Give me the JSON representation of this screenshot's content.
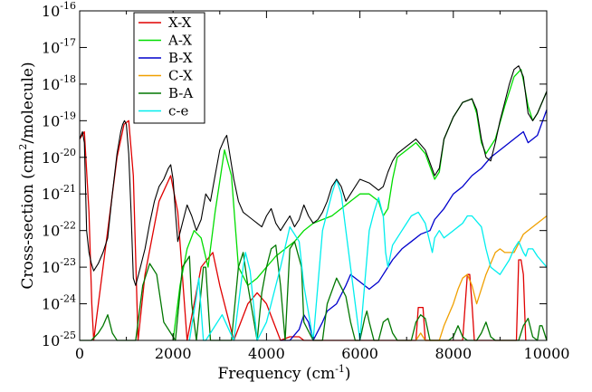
{
  "chart_data": {
    "type": "line",
    "title": "",
    "xlabel": "Frequency (cm",
    "xlabel_sup": "-1",
    "xlabel_end": ")",
    "ylabel": "Cross-section (cm",
    "ylabel_sup": "2",
    "ylabel_end": "/molecule)",
    "xlim": [
      0,
      10000
    ],
    "y_log_scale": true,
    "ylim_exponent": [
      -25,
      -16
    ],
    "x_ticks": [
      0,
      2000,
      4000,
      6000,
      8000,
      10000
    ],
    "x_tick_labels": [
      "0",
      "2000",
      "4000",
      "6000",
      "8000",
      "10000"
    ],
    "y_tick_exponents": [
      -25,
      -24,
      -23,
      -22,
      -21,
      -20,
      -19,
      -18,
      -17,
      -16
    ],
    "y_tick_base": "10",
    "y_tick_labels": [
      "-25",
      "-24",
      "-23",
      "-22",
      "-21",
      "-20",
      "-19",
      "-18",
      "-17",
      "-16"
    ],
    "legend_position": "top-left",
    "series": [
      {
        "name": "X-X",
        "color": "#e00000",
        "x": [
          0,
          100,
          200,
          260,
          300,
          600,
          800,
          950,
          1050,
          1150,
          1250,
          1400,
          1700,
          1950,
          2100,
          2300,
          2600,
          2850,
          3000,
          3300,
          3600,
          3800,
          4000,
          4300,
          4500,
          4700,
          4800,
          5000,
          7200,
          7250,
          7300,
          7350,
          7400,
          8200,
          8300,
          8350,
          8400,
          8450,
          9350,
          9400,
          9450,
          9500,
          9550
        ],
        "y": [
          -19.5,
          -19.3,
          -21.5,
          -24,
          -25,
          -22,
          -20,
          -19.1,
          -19.0,
          -20.5,
          -25,
          -23.2,
          -21.2,
          -20.5,
          -21.5,
          -25,
          -23,
          -22.6,
          -23.5,
          -25,
          -24,
          -23.7,
          -24.0,
          -25,
          -24.9,
          -24.9,
          -25,
          -25,
          -25,
          -24.1,
          -24.1,
          -24.1,
          -25,
          -25,
          -23.2,
          -23.2,
          -24.0,
          -25,
          -25,
          -22.8,
          -22.8,
          -23.2,
          -25
        ]
      },
      {
        "name": "A-X",
        "color": "#00dd00",
        "x": [
          2000,
          2150,
          2300,
          2450,
          2600,
          2750,
          2900,
          3100,
          3250,
          3400,
          3600,
          3800,
          4000,
          4200,
          4400,
          4600,
          4800,
          5000,
          5200,
          5400,
          5600,
          5800,
          6000,
          6200,
          6400,
          6500,
          6600,
          6700,
          6800,
          7000,
          7200,
          7400,
          7600,
          7700,
          7800,
          8000,
          8200,
          8400,
          8500,
          8600,
          8700,
          8900,
          9100,
          9300,
          9450,
          9500,
          9600,
          9700,
          9800,
          10000
        ],
        "y": [
          -25,
          -23.5,
          -22.5,
          -22.0,
          -22.2,
          -23.0,
          -21.5,
          -19.8,
          -20.5,
          -23.0,
          -23.5,
          -23.3,
          -23.0,
          -22.7,
          -22.5,
          -22.3,
          -22.0,
          -21.8,
          -21.7,
          -21.6,
          -21.4,
          -21.2,
          -21.0,
          -21.0,
          -21.2,
          -21.6,
          -21.4,
          -20.6,
          -20.0,
          -19.8,
          -19.6,
          -19.9,
          -20.6,
          -20.4,
          -19.5,
          -18.9,
          -18.5,
          -18.4,
          -18.8,
          -19.6,
          -19.9,
          -19.5,
          -18.6,
          -17.8,
          -17.6,
          -17.9,
          -18.6,
          -19.0,
          -18.8,
          -18.2
        ]
      },
      {
        "name": "B-X",
        "color": "#0000cc",
        "x": [
          4300,
          4500,
          4700,
          4800,
          4900,
          5000,
          5200,
          5300,
          5500,
          5700,
          5800,
          6000,
          6200,
          6400,
          6500,
          6700,
          6900,
          7100,
          7300,
          7500,
          7600,
          7800,
          8000,
          8200,
          8400,
          8600,
          8800,
          9000,
          9200,
          9400,
          9500,
          9600,
          9800,
          10000
        ],
        "y": [
          -25,
          -25,
          -24.7,
          -24.3,
          -24.5,
          -25,
          -24.5,
          -24.2,
          -24.0,
          -23.5,
          -23.2,
          -23.4,
          -23.6,
          -23.4,
          -23.2,
          -22.8,
          -22.5,
          -22.3,
          -22.1,
          -22.0,
          -21.7,
          -21.4,
          -21.0,
          -20.8,
          -20.5,
          -20.3,
          -20.0,
          -19.8,
          -19.6,
          -19.4,
          -19.3,
          -19.6,
          -19.4,
          -18.7
        ]
      },
      {
        "name": "C-X",
        "color": "#f0a000",
        "x": [
          7200,
          7300,
          7400,
          7500,
          7700,
          7800,
          8000,
          8100,
          8200,
          8300,
          8400,
          8500,
          8700,
          8900,
          9000,
          9100,
          9300,
          9500,
          9700,
          10000
        ],
        "y": [
          -25,
          -24.8,
          -25,
          -25,
          -25,
          -24.6,
          -24.0,
          -23.6,
          -23.3,
          -23.2,
          -23.5,
          -24.0,
          -23.2,
          -22.6,
          -22.5,
          -22.6,
          -22.6,
          -22.1,
          -21.9,
          -21.6
        ]
      },
      {
        "name": "B-A",
        "color": "#007700",
        "x": [
          0,
          250,
          400,
          500,
          600,
          700,
          800,
          1200,
          1350,
          1500,
          1650,
          1800,
          2050,
          2200,
          2350,
          2400,
          2500,
          2650,
          2700,
          2800,
          2900,
          3250,
          3400,
          3500,
          3600,
          3800,
          3900,
          4000,
          4100,
          4200,
          4300,
          4400,
          4500,
          4600,
          4750,
          4800,
          5000,
          5200,
          5300,
          5500,
          5700,
          5800,
          5900,
          6000,
          6100,
          6150,
          6200,
          6300,
          6350,
          6400,
          6500,
          6600,
          6700,
          6800,
          6900,
          7000,
          7100,
          7200,
          7300,
          7400,
          7500,
          7600,
          7900,
          8000,
          8100,
          8200,
          8300,
          8400,
          8500,
          8600,
          8700,
          8800,
          8900,
          9000,
          9300,
          9400,
          9500,
          9600,
          9700,
          9800,
          9850,
          9900,
          10000
        ],
        "y": [
          -25,
          -25,
          -24.8,
          -24.6,
          -24.3,
          -24.8,
          -25,
          -25,
          -23.5,
          -22.9,
          -23.2,
          -24.5,
          -25,
          -23.0,
          -22.7,
          -24.0,
          -25,
          -23.0,
          -23.0,
          -25,
          -25,
          -25,
          -23.0,
          -22.6,
          -23.5,
          -25,
          -23.7,
          -23.0,
          -22.5,
          -22.4,
          -23.5,
          -25,
          -22.5,
          -22.3,
          -23.0,
          -24.5,
          -25,
          -25,
          -24.0,
          -23.3,
          -23.8,
          -24.5,
          -25,
          -25,
          -24.4,
          -24.2,
          -24.5,
          -25,
          -25,
          -25,
          -24.5,
          -24.4,
          -24.8,
          -25,
          -25,
          -25,
          -25,
          -24.5,
          -24.3,
          -24.4,
          -25,
          -25,
          -25,
          -24.9,
          -24.6,
          -24.9,
          -25,
          -25,
          -25,
          -24.8,
          -24.5,
          -24.9,
          -25,
          -25,
          -25,
          -25,
          -24.6,
          -24.4,
          -24.9,
          -25,
          -24.6,
          -24.6,
          -25
        ]
      },
      {
        "name": "c-e",
        "color": "#00eeee",
        "x": [
          2350,
          2500,
          2550,
          2650,
          2700,
          2800,
          3050,
          3300,
          3500,
          3550,
          3650,
          3800,
          4000,
          4300,
          4500,
          4700,
          4800,
          5000,
          5200,
          5400,
          5500,
          5600,
          5700,
          6000,
          6200,
          6300,
          6400,
          6500,
          6550,
          6600,
          6700,
          6900,
          7100,
          7250,
          7400,
          7550,
          7600,
          7700,
          7800,
          8000,
          8200,
          8300,
          8400,
          8600,
          8700,
          8800,
          9000,
          9200,
          9300,
          9400,
          9500,
          9550,
          9600,
          9700,
          9800,
          10000
        ],
        "y": [
          -25,
          -23.8,
          -23.3,
          -25,
          -25,
          -24.8,
          -24.3,
          -25,
          -23.0,
          -22.6,
          -23.1,
          -25,
          -24.5,
          -23.0,
          -21.9,
          -22.3,
          -23.5,
          -25,
          -22.0,
          -21.0,
          -20.6,
          -21.0,
          -22.0,
          -25,
          -22.0,
          -21.5,
          -21.1,
          -21.6,
          -22.6,
          -23.0,
          -22.4,
          -22.0,
          -21.6,
          -21.5,
          -21.8,
          -22.6,
          -22.2,
          -22.0,
          -22.2,
          -22.0,
          -21.8,
          -21.6,
          -21.6,
          -21.9,
          -22.5,
          -23.0,
          -23.2,
          -22.8,
          -22.5,
          -22.3,
          -22.6,
          -22.7,
          -22.5,
          -22.5,
          -22.7,
          -23.0
        ]
      },
      {
        "name": "",
        "color": "#000000",
        "x": [
          0,
          60,
          100,
          150,
          200,
          250,
          300,
          400,
          500,
          600,
          700,
          800,
          880,
          920,
          960,
          1000,
          1050,
          1100,
          1150,
          1200,
          1300,
          1400,
          1500,
          1600,
          1700,
          1800,
          1900,
          1950,
          2000,
          2050,
          2100,
          2200,
          2300,
          2400,
          2500,
          2600,
          2700,
          2800,
          2900,
          3000,
          3100,
          3150,
          3200,
          3300,
          3400,
          3500,
          3600,
          3700,
          3800,
          3900,
          4000,
          4100,
          4200,
          4300,
          4400,
          4500,
          4600,
          4700,
          4800,
          4900,
          5000,
          5100,
          5200,
          5300,
          5400,
          5500,
          5600,
          5700,
          5800,
          6000,
          6200,
          6400,
          6500,
          6600,
          6700,
          6800,
          7000,
          7200,
          7400,
          7600,
          7700,
          7800,
          8000,
          8200,
          8400,
          8500,
          8600,
          8700,
          8800,
          8900,
          9000,
          9100,
          9200,
          9300,
          9400,
          9500,
          9550,
          9600,
          9700,
          9800,
          10000
        ],
        "y": [
          -19.5,
          -19.3,
          -19.6,
          -22.0,
          -22.6,
          -22.9,
          -23.1,
          -22.9,
          -22.6,
          -22.2,
          -21.0,
          -19.9,
          -19.3,
          -19.1,
          -19.0,
          -19.1,
          -19.9,
          -21.5,
          -23.3,
          -23.5,
          -23.0,
          -22.5,
          -21.8,
          -21.2,
          -20.8,
          -20.6,
          -20.3,
          -20.2,
          -20.6,
          -21.5,
          -22.3,
          -21.8,
          -21.3,
          -21.6,
          -22.0,
          -21.7,
          -21.0,
          -21.2,
          -20.5,
          -19.8,
          -19.5,
          -19.4,
          -19.8,
          -20.6,
          -21.2,
          -21.5,
          -21.6,
          -21.7,
          -21.8,
          -21.9,
          -21.6,
          -21.4,
          -21.8,
          -22.0,
          -21.8,
          -21.6,
          -21.9,
          -21.7,
          -21.3,
          -21.6,
          -21.8,
          -21.7,
          -21.5,
          -21.2,
          -20.8,
          -20.6,
          -20.8,
          -21.2,
          -21.0,
          -20.6,
          -20.7,
          -20.9,
          -20.8,
          -20.4,
          -20.1,
          -19.9,
          -19.7,
          -19.5,
          -19.8,
          -20.5,
          -20.3,
          -19.5,
          -18.9,
          -18.5,
          -18.4,
          -18.7,
          -19.5,
          -20.0,
          -20.1,
          -19.6,
          -19.0,
          -18.5,
          -18.0,
          -17.6,
          -17.5,
          -17.8,
          -18.3,
          -18.8,
          -19.0,
          -18.8,
          -18.2
        ]
      }
    ]
  }
}
